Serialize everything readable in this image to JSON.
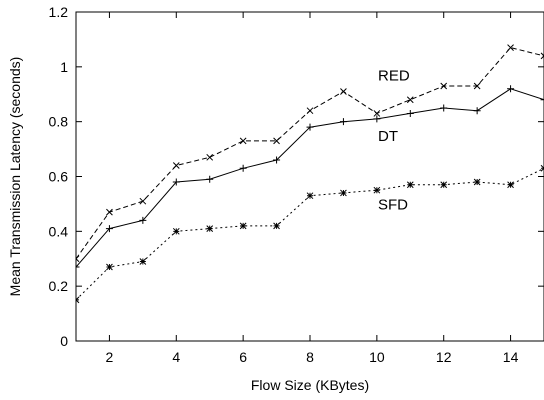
{
  "chart_data": {
    "type": "line",
    "xlabel": "Flow Size (KBytes)",
    "ylabel": "Mean Transmission Latency (seconds)",
    "xlim": [
      1,
      15
    ],
    "ylim": [
      0,
      1.2
    ],
    "xticks": [
      2,
      4,
      6,
      8,
      10,
      12,
      14
    ],
    "yticks": [
      0,
      0.2,
      0.4,
      0.6,
      0.8,
      1,
      1.2
    ],
    "xtick_labels": [
      "2",
      "4",
      "6",
      "8",
      "10",
      "12",
      "14"
    ],
    "ytick_labels": [
      "0",
      "0.2",
      "0.4",
      "0.6",
      "0.8",
      "1",
      "1.2"
    ],
    "grid": false,
    "legend": "none",
    "x": [
      1,
      2,
      3,
      4,
      5,
      6,
      7,
      8,
      9,
      10,
      11,
      12,
      13,
      14,
      15
    ],
    "series": [
      {
        "name": "RED",
        "marker": "x",
        "dash": "dashed",
        "label_at": [
          8.0,
          0.95
        ],
        "values": [
          0.3,
          0.47,
          0.51,
          0.64,
          0.67,
          0.73,
          0.73,
          0.84,
          0.91,
          0.83,
          0.88,
          0.93,
          0.93,
          1.07,
          1.04
        ]
      },
      {
        "name": "DT",
        "marker": "+",
        "dash": "solid",
        "label_at": [
          8.0,
          0.73
        ],
        "values": [
          0.27,
          0.41,
          0.44,
          0.58,
          0.59,
          0.63,
          0.66,
          0.78,
          0.8,
          0.81,
          0.83,
          0.85,
          0.84,
          0.92,
          0.88
        ]
      },
      {
        "name": "SFD",
        "marker": "*",
        "dash": "dotted",
        "label_at": [
          8.0,
          0.48
        ],
        "values": [
          0.15,
          0.27,
          0.29,
          0.4,
          0.41,
          0.42,
          0.42,
          0.53,
          0.54,
          0.55,
          0.57,
          0.57,
          0.58,
          0.57,
          0.63
        ]
      }
    ]
  }
}
